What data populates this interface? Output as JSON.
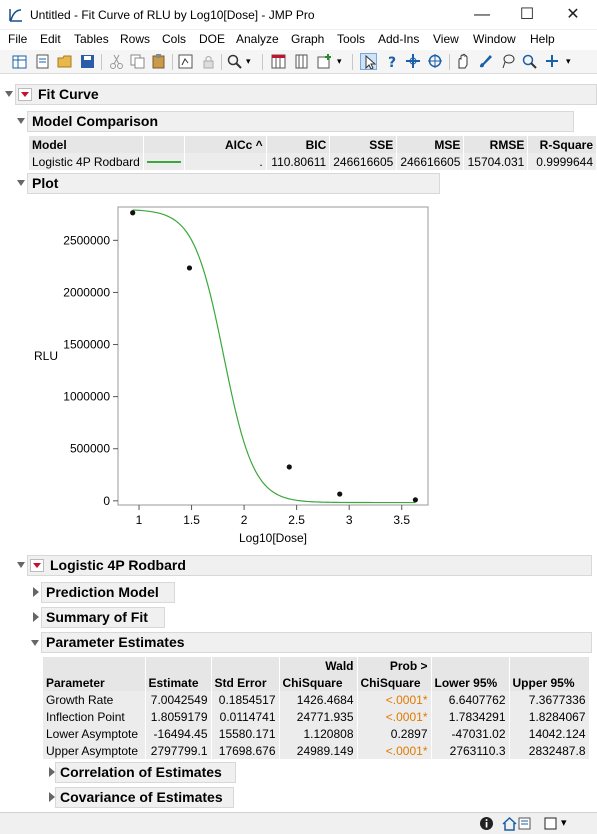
{
  "window": {
    "title": "Untitled - Fit Curve of RLU by Log10[Dose] - JMP Pro",
    "minimize": "—",
    "maximize": "☐",
    "close": "✕"
  },
  "menu": [
    "File",
    "Edit",
    "Tables",
    "Rows",
    "Cols",
    "DOE",
    "Analyze",
    "Graph",
    "Tools",
    "Add-Ins",
    "View",
    "Window",
    "Help"
  ],
  "report": {
    "fit_curve_title": "Fit Curve",
    "model_comparison": {
      "title": "Model Comparison",
      "headers": [
        "Model",
        "",
        "AICc ^",
        "BIC",
        "SSE",
        "MSE",
        "RMSE",
        "R-Square"
      ],
      "row": {
        "model": "Logistic 4P Rodbard",
        "aicc": ".",
        "bic": "110.80611",
        "sse": "246616605",
        "mse": "246616605",
        "rmse": "15704.031",
        "rsquare": "0.9999644"
      },
      "legend_color": "#3aa83a"
    },
    "plot": {
      "title": "Plot",
      "ylabel": "RLU",
      "xlabel": "Log10[Dose]"
    },
    "logistic": {
      "title": "Logistic 4P Rodbard",
      "prediction_model": "Prediction Model",
      "summary_of_fit": "Summary of Fit",
      "parameter_estimates": {
        "title": "Parameter Estimates",
        "headers_top": [
          "",
          "",
          "",
          "Wald",
          "Prob >",
          "",
          ""
        ],
        "headers": [
          "Parameter",
          "Estimate",
          "Std Error",
          "ChiSquare",
          "ChiSquare",
          "Lower 95%",
          "Upper 95%"
        ],
        "rows": [
          {
            "parameter": "Growth Rate",
            "estimate": "7.0042549",
            "stderr": "0.1854517",
            "chisq": "1426.4684",
            "prob": "<.0001*",
            "lower": "6.6407762",
            "upper": "7.3677336",
            "sig": true
          },
          {
            "parameter": "Inflection Point",
            "estimate": "1.8059179",
            "stderr": "0.0114741",
            "chisq": "24771.935",
            "prob": "<.0001*",
            "lower": "1.7834291",
            "upper": "1.8284067",
            "sig": true
          },
          {
            "parameter": "Lower Asymptote",
            "estimate": "-16494.45",
            "stderr": "15580.171",
            "chisq": "1.120808",
            "prob": "0.2897",
            "lower": "-47031.02",
            "upper": "14042.124",
            "sig": false
          },
          {
            "parameter": "Upper Asymptote",
            "estimate": "2797799.1",
            "stderr": "17698.676",
            "chisq": "24989.149",
            "prob": "<.0001*",
            "lower": "2763110.3",
            "upper": "2832487.8",
            "sig": true
          }
        ]
      },
      "correlation": "Correlation of Estimates",
      "covariance": "Covariance of Estimates"
    }
  },
  "chart_data": {
    "type": "scatter",
    "xlabel": "Log10[Dose]",
    "ylabel": "RLU",
    "xlim": [
      0.8,
      3.75
    ],
    "ylim": [
      -40000,
      2820000
    ],
    "x_ticks": [
      "1",
      "1.5",
      "2",
      "2.5",
      "3",
      "3.5"
    ],
    "x_tick_values": [
      1,
      1.5,
      2,
      2.5,
      3,
      3.5
    ],
    "y_ticks": [
      "0",
      "500000",
      "1000000",
      "1500000",
      "2000000",
      "2500000"
    ],
    "y_tick_values": [
      0,
      500000,
      1000000,
      1500000,
      2000000,
      2500000
    ],
    "points": [
      {
        "x": 0.94,
        "y": 2765000
      },
      {
        "x": 1.48,
        "y": 2235000
      },
      {
        "x": 2.43,
        "y": 325000
      },
      {
        "x": 2.91,
        "y": 65000
      },
      {
        "x": 3.63,
        "y": 10000
      }
    ],
    "curve": {
      "model": "Logistic 4P Rodbard",
      "growth_rate": 7.0042549,
      "inflection": 1.8059179,
      "lower": -16494.45,
      "upper": 2797799.1,
      "color": "#3aa83a"
    }
  }
}
